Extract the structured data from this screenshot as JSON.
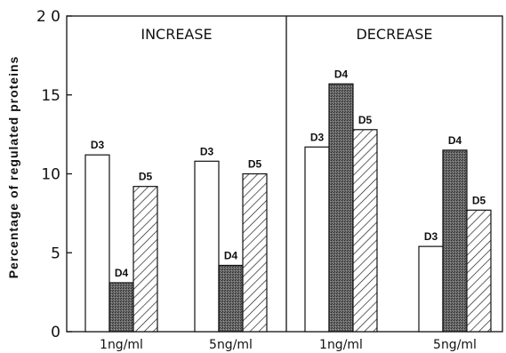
{
  "chart_data": {
    "type": "bar",
    "ylabel": "Percentage of regulated proteins",
    "ylim": [
      0,
      20
    ],
    "yticks": [
      "0",
      "5",
      "10",
      "15",
      "2 0"
    ],
    "panels": [
      "INCREASE",
      "DECREASE"
    ],
    "categories": [
      "1ng/ml",
      "5ng/ml",
      "1ng/ml",
      "5ng/ml"
    ],
    "series": [
      {
        "name": "D3",
        "fill": "white",
        "values": [
          11.2,
          10.8,
          11.7,
          5.4
        ]
      },
      {
        "name": "D4",
        "fill": "dark",
        "values": [
          3.1,
          4.2,
          15.7,
          11.5
        ]
      },
      {
        "name": "D5",
        "fill": "hatched",
        "values": [
          9.2,
          10.0,
          12.8,
          7.7
        ]
      }
    ],
    "grid": false,
    "colors": {
      "dark": "#5a5a5a",
      "outline": "#111111"
    }
  }
}
